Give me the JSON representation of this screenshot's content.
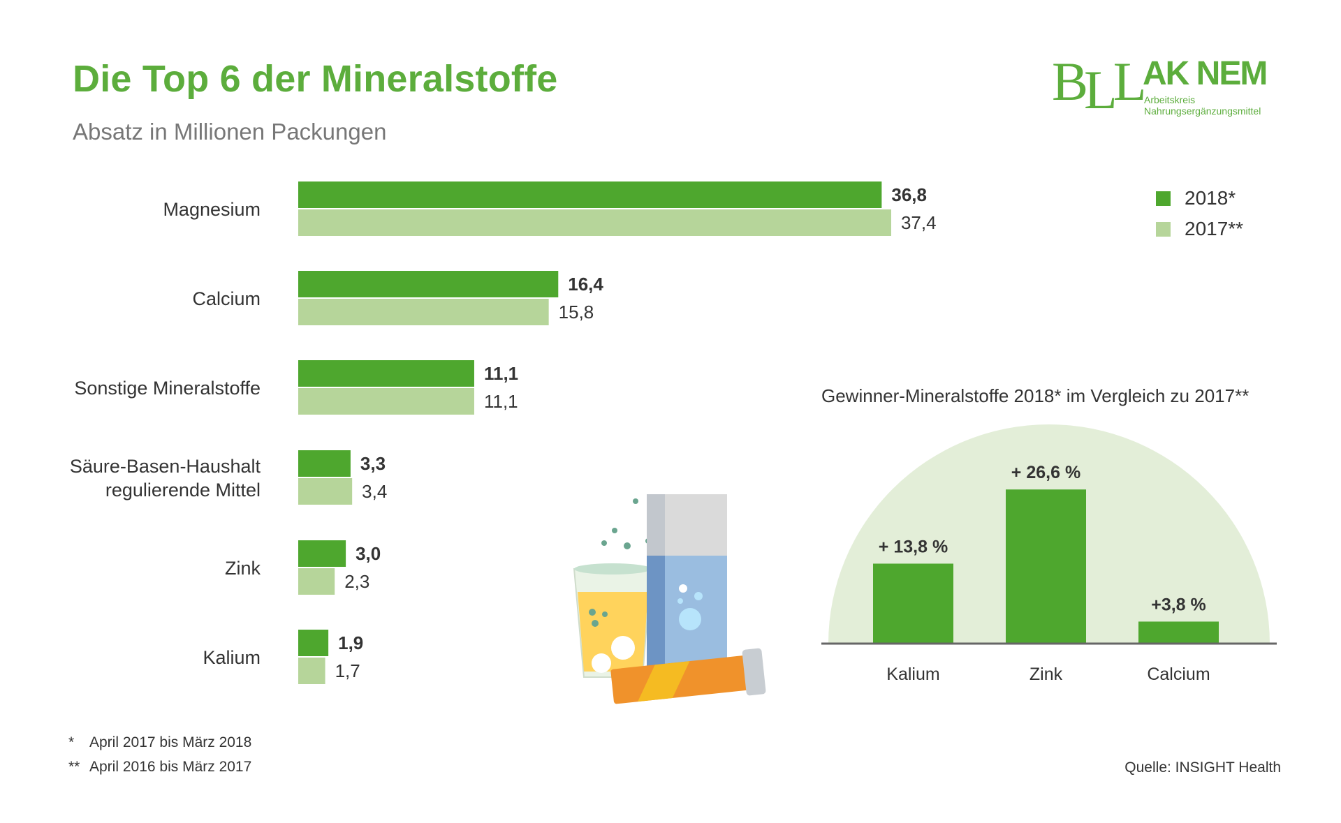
{
  "header": {
    "title": "Die Top 6 der Mineralstoffe",
    "subtitle": "Absatz in Millionen Packungen"
  },
  "logo": {
    "bll": "BLL",
    "ak": "AK NEM",
    "line1": "Arbeitskreis",
    "line2": "Nahrungsergänzungsmittel"
  },
  "colors": {
    "green_dark": "#4ea72e",
    "green_light": "#b6d59a",
    "title_green": "#5cad3c",
    "arc_bg": "#e3eed8"
  },
  "legend": {
    "items": [
      {
        "label": "2018*",
        "color": "#4ea72e"
      },
      {
        "label": "2017**",
        "color": "#b6d59a"
      }
    ]
  },
  "chart_data": [
    {
      "type": "bar",
      "orientation": "horizontal",
      "categories": [
        "Magnesium",
        "Calcium",
        "Sonstige Mineralstoffe",
        "Säure-Basen-Haushalt regulierende Mittel",
        "Zink",
        "Kalium"
      ],
      "category_lines": [
        [
          "Magnesium"
        ],
        [
          "Calcium"
        ],
        [
          "Sonstige Mineralstoffe"
        ],
        [
          "Säure-Basen-Haushalt",
          "regulierende Mittel"
        ],
        [
          "Zink"
        ],
        [
          "Kalium"
        ]
      ],
      "series": [
        {
          "name": "2018*",
          "values": [
            36.8,
            16.4,
            11.1,
            3.3,
            3.0,
            1.9
          ],
          "labels": [
            "36,8",
            "16,4",
            "11,1",
            "3,3",
            "3,0",
            "1,9"
          ]
        },
        {
          "name": "2017**",
          "values": [
            37.4,
            15.8,
            11.1,
            3.4,
            2.3,
            1.7
          ],
          "labels": [
            "37,4",
            "15,8",
            "11,1",
            "3,4",
            "2,3",
            "1,7"
          ]
        }
      ],
      "title": "Die Top 6 der Mineralstoffe",
      "subtitle": "Absatz in Millionen Packungen"
    },
    {
      "type": "bar",
      "title": "Gewinner-Mineralstoffe 2018* im Vergleich zu 2017**",
      "categories": [
        "Kalium",
        "Zink",
        "Calcium"
      ],
      "values": [
        13.8,
        26.6,
        3.8
      ],
      "labels": [
        "+ 13,8 %",
        "+ 26,6 %",
        "+3,8 %"
      ]
    }
  ],
  "footnotes": [
    {
      "mark": "*",
      "text": "April 2017 bis März 2018"
    },
    {
      "mark": "**",
      "text": "April 2016 bis März 2017"
    }
  ],
  "source": "Quelle: INSIGHT Health",
  "illustration": {
    "icon": "effervescent-tablets-glass-icon"
  }
}
